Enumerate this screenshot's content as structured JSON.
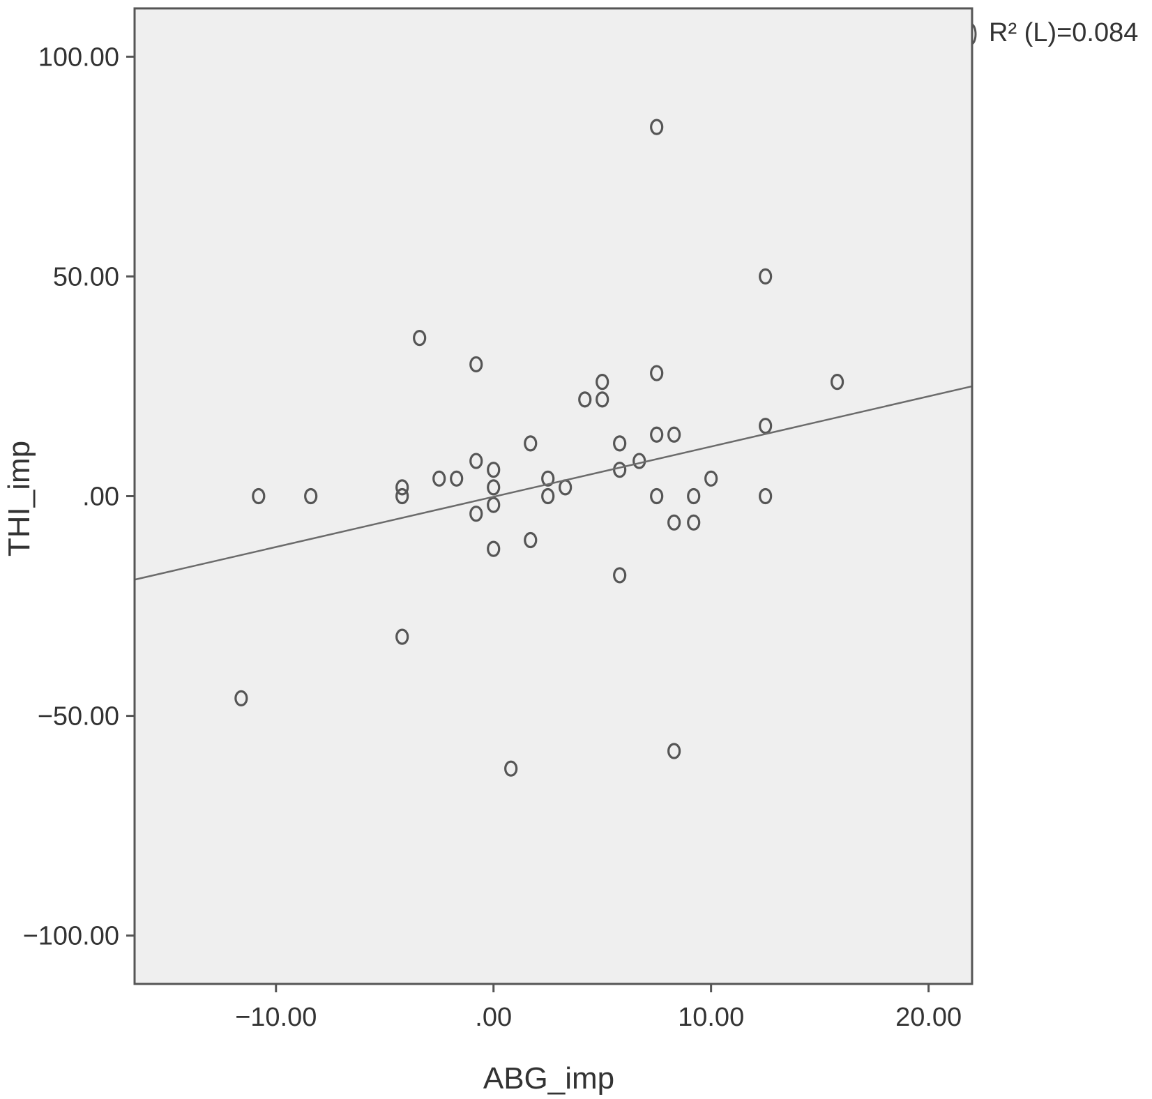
{
  "chart_data": {
    "type": "scatter",
    "xlabel": "ABG_imp",
    "ylabel": "THI_imp",
    "xlim": [
      -16.5,
      22
    ],
    "ylim": [
      -111,
      111
    ],
    "x_ticks": [
      -10,
      0,
      10,
      20
    ],
    "y_ticks": [
      -100,
      -50,
      0,
      50,
      100
    ],
    "x_tick_labels": [
      "−10.00",
      ".00",
      "10.00",
      "20.00"
    ],
    "y_tick_labels": [
      "−100.00",
      "−50.00",
      ".00",
      "50.00",
      "100.00"
    ],
    "grid": false,
    "legend_label": "R² (L)=0.084",
    "legend_position": "top-right",
    "fit_line": {
      "type": "linear",
      "x": [
        -16.5,
        22
      ],
      "y": [
        -19,
        25
      ],
      "r_squared": 0.084
    },
    "colors": {
      "plot_background": "#efefef",
      "marker": "#555555",
      "fit_line": "#6b6b6b",
      "axis": "#555555"
    },
    "points": [
      {
        "x": -11.6,
        "y": -46
      },
      {
        "x": -10.8,
        "y": 0
      },
      {
        "x": -8.4,
        "y": 0
      },
      {
        "x": -4.2,
        "y": 0
      },
      {
        "x": -4.2,
        "y": 2
      },
      {
        "x": -4.2,
        "y": -32
      },
      {
        "x": -3.4,
        "y": 36
      },
      {
        "x": -2.5,
        "y": 4
      },
      {
        "x": -1.7,
        "y": 4
      },
      {
        "x": -0.8,
        "y": 30
      },
      {
        "x": -0.8,
        "y": 8
      },
      {
        "x": -0.8,
        "y": -4
      },
      {
        "x": 0,
        "y": 6
      },
      {
        "x": 0,
        "y": 2
      },
      {
        "x": 0,
        "y": -2
      },
      {
        "x": 0,
        "y": -12
      },
      {
        "x": 0.8,
        "y": -62
      },
      {
        "x": 1.7,
        "y": 12
      },
      {
        "x": 1.7,
        "y": -10
      },
      {
        "x": 2.5,
        "y": 4
      },
      {
        "x": 2.5,
        "y": 0
      },
      {
        "x": 3.3,
        "y": 2
      },
      {
        "x": 4.2,
        "y": 22
      },
      {
        "x": 5.0,
        "y": 26
      },
      {
        "x": 5.0,
        "y": 22
      },
      {
        "x": 5.8,
        "y": 12
      },
      {
        "x": 5.8,
        "y": 6
      },
      {
        "x": 5.8,
        "y": -18
      },
      {
        "x": 6.7,
        "y": 8
      },
      {
        "x": 7.5,
        "y": 84
      },
      {
        "x": 7.5,
        "y": 28
      },
      {
        "x": 7.5,
        "y": 14
      },
      {
        "x": 7.5,
        "y": 0
      },
      {
        "x": 8.3,
        "y": 14
      },
      {
        "x": 8.3,
        "y": -6
      },
      {
        "x": 8.3,
        "y": -58
      },
      {
        "x": 9.2,
        "y": 0
      },
      {
        "x": 9.2,
        "y": -6
      },
      {
        "x": 10.0,
        "y": 4
      },
      {
        "x": 12.5,
        "y": 50
      },
      {
        "x": 12.5,
        "y": 16
      },
      {
        "x": 12.5,
        "y": 0
      },
      {
        "x": 15.8,
        "y": 26
      }
    ]
  }
}
